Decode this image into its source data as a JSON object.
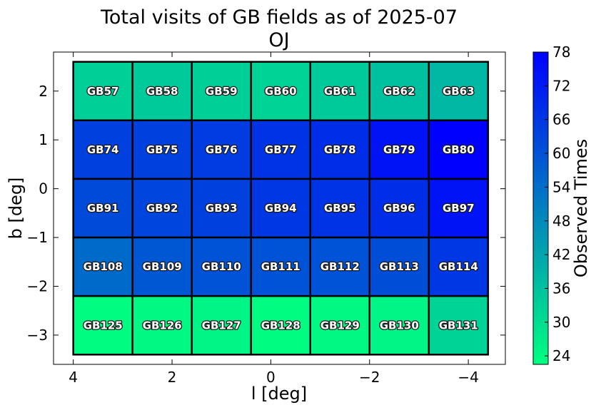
{
  "chart_data": {
    "type": "heatmap",
    "title": "Total visits of GB fields as of 2025-07",
    "subtitle": "OJ",
    "xlabel": "l [deg]",
    "ylabel": "b [deg]",
    "xlim": [
      4.4,
      -4.75
    ],
    "ylim": [
      -3.6,
      2.8
    ],
    "x_ticks": [
      4,
      2,
      0,
      -2,
      -4
    ],
    "x_tick_labels": [
      "4",
      "2",
      "0",
      "−2",
      "−4"
    ],
    "y_ticks": [
      2,
      1,
      0,
      -1,
      -2,
      -3
    ],
    "y_tick_labels": [
      "2",
      "1",
      "0",
      "−1",
      "−2",
      "−3"
    ],
    "colorbar": {
      "label": "Observed Times",
      "min": 22.5,
      "max": 78,
      "ticks": [
        24,
        30,
        36,
        42,
        48,
        54,
        60,
        66,
        72,
        78
      ],
      "colormap": "winter_r",
      "color_low": "#00ff80",
      "color_high": "#0000ff"
    },
    "grid": false,
    "cells": [
      {
        "name": "GB57",
        "l": 3.4,
        "b": 2.0,
        "value": 33
      },
      {
        "name": "GB58",
        "l": 2.2,
        "b": 2.0,
        "value": 34
      },
      {
        "name": "GB59",
        "l": 1.0,
        "b": 2.0,
        "value": 33
      },
      {
        "name": "GB60",
        "l": -0.2,
        "b": 2.0,
        "value": 32
      },
      {
        "name": "GB61",
        "l": -1.4,
        "b": 2.0,
        "value": 34
      },
      {
        "name": "GB62",
        "l": -2.6,
        "b": 2.0,
        "value": 36
      },
      {
        "name": "GB63",
        "l": -3.8,
        "b": 2.0,
        "value": 38
      },
      {
        "name": "GB74",
        "l": 3.4,
        "b": 0.8,
        "value": 64
      },
      {
        "name": "GB75",
        "l": 2.2,
        "b": 0.8,
        "value": 64
      },
      {
        "name": "GB76",
        "l": 1.0,
        "b": 0.8,
        "value": 65
      },
      {
        "name": "GB77",
        "l": -0.2,
        "b": 0.8,
        "value": 67
      },
      {
        "name": "GB78",
        "l": -1.4,
        "b": 0.8,
        "value": 68
      },
      {
        "name": "GB79",
        "l": -2.6,
        "b": 0.8,
        "value": 74
      },
      {
        "name": "GB80",
        "l": -3.8,
        "b": 0.8,
        "value": 78
      },
      {
        "name": "GB91",
        "l": 3.4,
        "b": -0.4,
        "value": 62
      },
      {
        "name": "GB92",
        "l": 2.2,
        "b": -0.4,
        "value": 63
      },
      {
        "name": "GB93",
        "l": 1.0,
        "b": -0.4,
        "value": 64
      },
      {
        "name": "GB94",
        "l": -0.2,
        "b": -0.4,
        "value": 66
      },
      {
        "name": "GB95",
        "l": -1.4,
        "b": -0.4,
        "value": 67
      },
      {
        "name": "GB96",
        "l": -2.6,
        "b": -0.4,
        "value": 68
      },
      {
        "name": "GB97",
        "l": -3.8,
        "b": -0.4,
        "value": 74
      },
      {
        "name": "GB108",
        "l": 3.4,
        "b": -1.6,
        "value": 55
      },
      {
        "name": "GB109",
        "l": 2.2,
        "b": -1.6,
        "value": 59
      },
      {
        "name": "GB110",
        "l": 1.0,
        "b": -1.6,
        "value": 60
      },
      {
        "name": "GB111",
        "l": -0.2,
        "b": -1.6,
        "value": 60
      },
      {
        "name": "GB112",
        "l": -1.4,
        "b": -1.6,
        "value": 60
      },
      {
        "name": "GB113",
        "l": -2.6,
        "b": -1.6,
        "value": 61
      },
      {
        "name": "GB114",
        "l": -3.8,
        "b": -1.6,
        "value": 66
      },
      {
        "name": "GB125",
        "l": 3.4,
        "b": -2.8,
        "value": 23
      },
      {
        "name": "GB126",
        "l": 2.2,
        "b": -2.8,
        "value": 24
      },
      {
        "name": "GB127",
        "l": 1.0,
        "b": -2.8,
        "value": 25
      },
      {
        "name": "GB128",
        "l": -0.2,
        "b": -2.8,
        "value": 23
      },
      {
        "name": "GB129",
        "l": -1.4,
        "b": -2.8,
        "value": 24
      },
      {
        "name": "GB130",
        "l": -2.6,
        "b": -2.8,
        "value": 25
      },
      {
        "name": "GB131",
        "l": -3.8,
        "b": -2.8,
        "value": 32
      }
    ]
  }
}
